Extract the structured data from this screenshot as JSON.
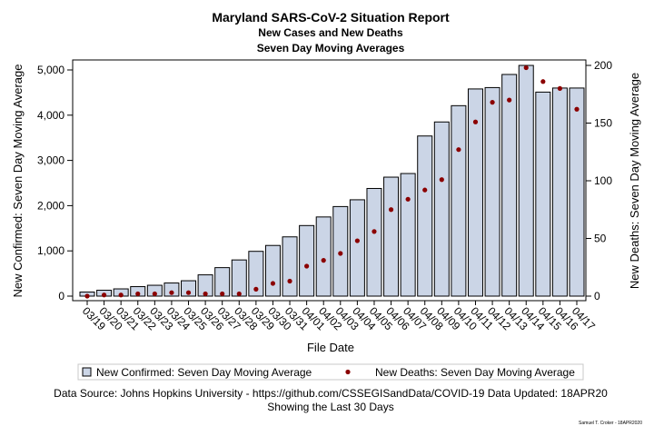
{
  "chart_data": {
    "type": "bar",
    "title": "Maryland SARS-CoV-2 Situation Report",
    "subtitle_1": "New Cases and New Deaths",
    "subtitle_2": "Seven Day Moving Averages",
    "xlabel": "File Date",
    "ylabel_left": "New Confirmed: Seven Day Moving Average",
    "ylabel_right": "New Deaths: Seven Day Moving Average",
    "categories": [
      "03/19",
      "03/20",
      "03/21",
      "03/22",
      "03/23",
      "03/24",
      "03/25",
      "03/26",
      "03/27",
      "03/28",
      "03/29",
      "03/30",
      "03/31",
      "04/01",
      "04/02",
      "04/03",
      "04/04",
      "04/05",
      "04/06",
      "04/07",
      "04/08",
      "04/09",
      "04/10",
      "04/11",
      "04/12",
      "04/13",
      "04/14",
      "04/15",
      "04/16",
      "04/17"
    ],
    "left_ticks": [
      "0",
      "1,000",
      "2,000",
      "3,000",
      "4,000",
      "5,000"
    ],
    "right_ticks": [
      "0",
      "50",
      "100",
      "150",
      "200"
    ],
    "ylim_left": [
      0,
      5200
    ],
    "ylim_right": [
      0,
      208
    ],
    "series": [
      {
        "name": "New Confirmed: Seven Day Moving Average",
        "kind": "bar",
        "axis": "left",
        "values": [
          90,
          130,
          160,
          210,
          240,
          290,
          340,
          470,
          630,
          800,
          990,
          1120,
          1310,
          1560,
          1750,
          1980,
          2130,
          2380,
          2630,
          2710,
          3540,
          3850,
          4210,
          4580,
          4610,
          4900,
          5100,
          4510,
          4600,
          4600
        ]
      },
      {
        "name": "New Deaths: Seven Day Moving Average",
        "kind": "dot",
        "axis": "right",
        "values": [
          0,
          1,
          1,
          2,
          2,
          3,
          3,
          2,
          2,
          2,
          6,
          11,
          13,
          26,
          31,
          37,
          48,
          56,
          75,
          84,
          92,
          101,
          127,
          151,
          168,
          170,
          198,
          186,
          180,
          162
        ]
      }
    ],
    "colors": {
      "bar_fill": "#cbd5e6",
      "bar_stroke": "#000000",
      "dot": "#8b0000"
    },
    "grid": false,
    "legend_position": "bottom"
  },
  "footer": {
    "source_line": "Data Source: Johns Hopkins University - https://github.com/CSSEGISandData/COVID-19 Data Updated: 18APR20",
    "period_line": "Showing the Last 30 Days",
    "credit": "Samuel T. Croker - 18APR2020"
  }
}
